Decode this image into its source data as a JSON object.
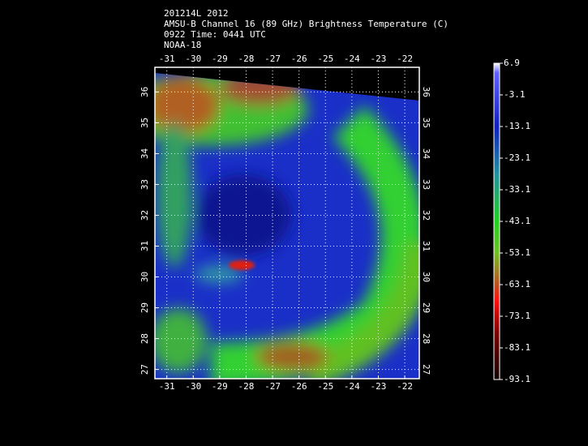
{
  "header": {
    "lines": [
      "201214L 2012",
      "AMSU-B Channel 16 (89 GHz) Brightness Temperature (C)",
      "0922 Time: 0441 UTC",
      "NOAA-18"
    ]
  },
  "map": {
    "xlim": [
      -31.45,
      -21.45
    ],
    "ylim": [
      26.7,
      36.8
    ],
    "xticks": [
      -31,
      -30,
      -29,
      -28,
      -27,
      -26,
      -25,
      -24,
      -23,
      -22
    ],
    "yticks": [
      27,
      28,
      29,
      30,
      31,
      32,
      33,
      34,
      35,
      36
    ]
  },
  "colorbar": {
    "lim": [
      -93.1,
      6.9
    ],
    "ticks": [
      6.9,
      -3.1,
      -13.1,
      -23.1,
      -33.1,
      -43.1,
      -53.1,
      -63.1,
      -73.1,
      -83.1,
      -93.1
    ]
  }
}
